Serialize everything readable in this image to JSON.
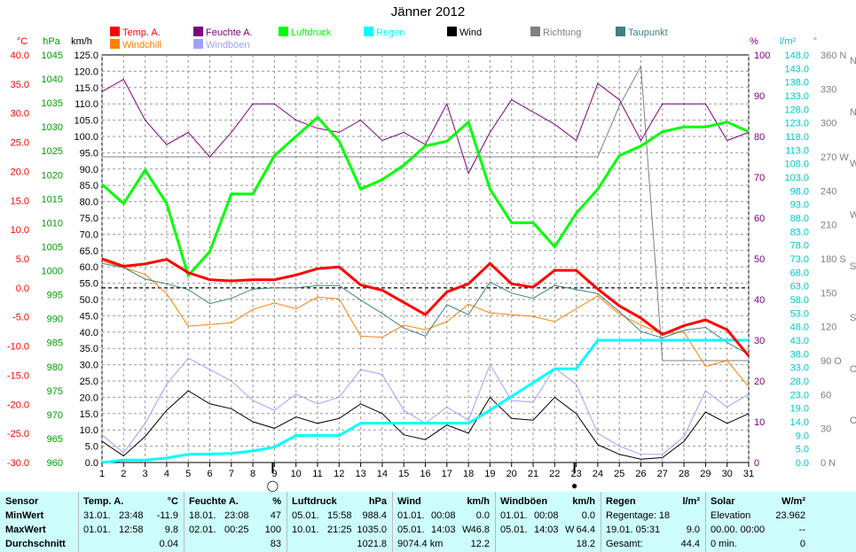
{
  "title": "Jänner 2012",
  "axes": {
    "temp_unit": "°C",
    "pressure_unit": "hPa",
    "speed_unit": "km/h",
    "humidity_unit": "%",
    "rain_unit": "l/m²",
    "direction_unit": "°",
    "temp_ticks": [
      "40.0",
      "35.0",
      "30.0",
      "25.0",
      "20.0",
      "15.0",
      "10.0",
      "5.0",
      "0.0",
      "-5.0",
      "-10.0",
      "-15.0",
      "-20.0",
      "-25.0",
      "-30.0"
    ],
    "pressure_ticks": [
      "1045",
      "1040",
      "1035",
      "1030",
      "1025",
      "1020",
      "1015",
      "1010",
      "1005",
      "1000",
      "995",
      "990",
      "985",
      "980",
      "975",
      "970",
      "965",
      "960"
    ],
    "speed_ticks": [
      "125.0",
      "120.0",
      "115.0",
      "110.0",
      "105.0",
      "100.0",
      "95.0",
      "90.0",
      "85.0",
      "80.0",
      "75.0",
      "70.0",
      "65.0",
      "60.0",
      "55.0",
      "50.0",
      "45.0",
      "40.0",
      "35.0",
      "30.0",
      "25.0",
      "20.0",
      "15.0",
      "10.0",
      "5.0",
      "0.0"
    ],
    "humidity_ticks": [
      "100",
      "90",
      "80",
      "70",
      "60",
      "50",
      "40",
      "30",
      "20",
      "10",
      "0"
    ],
    "rain_ticks": [
      "148.0",
      "143.0",
      "138.0",
      "133.0",
      "128.0",
      "123.0",
      "118.0",
      "113.0",
      "108.0",
      "103.0",
      "98.0",
      "93.0",
      "88.0",
      "83.0",
      "78.0",
      "73.0",
      "68.0",
      "63.0",
      "58.0",
      "53.0",
      "48.0",
      "43.0",
      "38.0",
      "33.0",
      "28.0",
      "23.0",
      "19.0",
      "14.0",
      "9.0",
      "5.0",
      "0.0"
    ],
    "direction_ticks": [
      "360 N",
      "330",
      "300",
      "270 W",
      "240",
      "210",
      "180 S",
      "150",
      "120",
      "90 O",
      "60",
      "30",
      "0 N"
    ],
    "direction_right": [
      "N",
      "N",
      "W",
      "W",
      "S",
      "S",
      "O",
      "O"
    ]
  },
  "legend": [
    {
      "label": "Temp. A.",
      "color": "#ff0000"
    },
    {
      "label": "Feuchte A.",
      "color": "#800080"
    },
    {
      "label": "Luftdruck",
      "color": "#00ff00"
    },
    {
      "label": "Regen",
      "color": "#00ffff"
    },
    {
      "label": "Wind",
      "color": "#000000"
    },
    {
      "label": "Richtung",
      "color": "#808080"
    },
    {
      "label": "Taupunkt",
      "color": "#408080"
    },
    {
      "label": "Windchill",
      "color": "#ff8000"
    },
    {
      "label": "Windböen",
      "color": "#a0a0ff"
    }
  ],
  "chart_data": {
    "type": "line",
    "title": "Jänner 2012",
    "x": [
      1,
      2,
      3,
      4,
      5,
      6,
      7,
      8,
      9,
      10,
      11,
      12,
      13,
      14,
      15,
      16,
      17,
      18,
      19,
      20,
      21,
      22,
      23,
      24,
      25,
      26,
      27,
      28,
      29,
      30,
      31
    ],
    "series": [
      {
        "name": "Temp. A.",
        "unit": "°C",
        "axis": "temp",
        "color": "#ff0000",
        "values": [
          5.0,
          3.7,
          4.1,
          4.9,
          2.6,
          1.4,
          1.2,
          1.4,
          1.4,
          2.2,
          3.3,
          3.6,
          0.5,
          -0.4,
          -2.5,
          -4.6,
          -0.7,
          0.7,
          4.2,
          0.7,
          0.1,
          3.0,
          3.0,
          -0.2,
          -3.1,
          -5.2,
          -8.0,
          -6.5,
          -5.5,
          -7.2,
          -11.7
        ]
      },
      {
        "name": "Feuchte A.",
        "unit": "%",
        "axis": "humidity",
        "color": "#800080",
        "values": [
          91,
          94,
          84,
          78,
          81,
          75,
          81,
          88,
          88,
          84,
          82,
          81,
          84,
          79,
          81,
          78,
          88,
          71,
          81,
          89,
          86,
          83,
          79,
          93,
          89,
          79,
          88,
          88,
          88,
          79,
          81
        ]
      },
      {
        "name": "Luftdruck",
        "unit": "hPa",
        "axis": "pressure",
        "color": "#00ff00",
        "values": [
          1018,
          1014,
          1021,
          1014,
          999,
          1004,
          1016,
          1016,
          1024,
          1028,
          1032,
          1027,
          1017,
          1019,
          1022,
          1026,
          1027,
          1031,
          1017,
          1010,
          1010,
          1005,
          1012,
          1017,
          1024,
          1026,
          1029,
          1030,
          1030,
          1031,
          1029
        ]
      },
      {
        "name": "Regen",
        "unit": "l/m²",
        "axis": "rain",
        "color": "#00ffff",
        "values": [
          0.0,
          0.9,
          0.9,
          1.6,
          3.0,
          3.1,
          3.3,
          4.2,
          5.6,
          9.8,
          9.8,
          9.8,
          14.3,
          14.3,
          14.3,
          14.3,
          14.3,
          14.3,
          19.0,
          24.0,
          29.0,
          34.0,
          34.0,
          44.4,
          44.4,
          44.4,
          44.4,
          44.4,
          44.4,
          44.4,
          44.4
        ]
      },
      {
        "name": "Wind",
        "unit": "km/h",
        "axis": "speed",
        "color": "#000000",
        "values": [
          6.5,
          2.0,
          8.0,
          16.0,
          22.0,
          18.0,
          16.5,
          12.5,
          10.5,
          14.0,
          12.0,
          13.5,
          18.0,
          15.0,
          8.5,
          7.0,
          11.5,
          9.0,
          20.0,
          13.5,
          13.0,
          20.0,
          15.0,
          5.5,
          2.5,
          1.0,
          1.5,
          6.5,
          15.5,
          12.0,
          15.0
        ]
      },
      {
        "name": "Richtung",
        "unit": "°",
        "axis": "direction",
        "color": "#808080",
        "values": [
          270,
          270,
          270,
          270,
          270,
          270,
          270,
          270,
          270,
          270,
          270,
          270,
          270,
          270,
          270,
          270,
          270,
          270,
          270,
          270,
          270,
          270,
          270,
          270,
          315,
          350,
          90,
          90,
          90,
          90,
          90
        ]
      },
      {
        "name": "Taupunkt",
        "unit": "°C",
        "axis": "temp",
        "color": "#408080",
        "values": [
          4.2,
          3.5,
          1.5,
          0.7,
          -0.3,
          -2.7,
          -1.8,
          -0.2,
          0.0,
          0.0,
          0.4,
          0.4,
          -2.1,
          -4.4,
          -6.9,
          -8.3,
          -2.9,
          -4.6,
          1.0,
          -0.9,
          -1.8,
          0.4,
          -0.3,
          -1.0,
          -4.1,
          -7.5,
          -8.6,
          -7.3,
          -6.8,
          -9.4,
          -11.4
        ]
      },
      {
        "name": "Windchill",
        "unit": "°C",
        "axis": "temp",
        "color": "#ff8000",
        "values": [
          4.6,
          3.5,
          2.3,
          -1.0,
          -6.6,
          -6.3,
          -6.0,
          -3.7,
          -2.6,
          -3.6,
          -1.6,
          -1.9,
          -8.3,
          -8.5,
          -6.4,
          -7.2,
          -5.8,
          -2.8,
          -4.3,
          -4.6,
          -4.9,
          -5.8,
          -3.6,
          -1.4,
          -4.5,
          -6.4,
          -7.9,
          -7.6,
          -13.5,
          -12.5,
          -17.0
        ]
      },
      {
        "name": "Windböen",
        "unit": "km/h",
        "axis": "speed",
        "color": "#a0a0ff",
        "values": [
          8.5,
          3.0,
          12.0,
          24.0,
          32.0,
          28.5,
          25.0,
          19.0,
          16.0,
          21.0,
          18.0,
          20.0,
          28.5,
          27.0,
          16.0,
          12.0,
          17.0,
          13.0,
          30.0,
          19.0,
          18.5,
          29.0,
          24.0,
          9.0,
          5.0,
          2.5,
          2.5,
          8.0,
          22.0,
          17.0,
          21.0
        ]
      }
    ],
    "moon_marks": [
      {
        "day": 9,
        "symbol": "◯"
      },
      {
        "day": 23,
        "symbol": "●"
      }
    ],
    "reference_lines": [
      {
        "axis": "temp",
        "value": 0.0,
        "style": "dashed"
      }
    ]
  },
  "stats": {
    "sensor": {
      "header": "Sensor",
      "min": "MinWert",
      "max": "MaxWert",
      "avg": "Durchschnitt"
    },
    "temp": {
      "header": "Temp. A.",
      "unit": "°C",
      "min_date": "31.01.",
      "min_time": "23:48",
      "min_val": "-11.9",
      "max_date": "01.01.",
      "max_time": "12:58",
      "max_val": "9.8",
      "avg_val": "0.04"
    },
    "hum": {
      "header": "Feuchte A.",
      "unit": "%",
      "min_date": "18.01.",
      "min_time": "23:08",
      "min_val": "47",
      "max_date": "02.01.",
      "max_time": "00:25",
      "max_val": "100",
      "avg_val": "83"
    },
    "press": {
      "header": "Luftdruck",
      "unit": "hPa",
      "min_date": "05.01.",
      "min_time": "15:58",
      "min_val": "988.4",
      "max_date": "10.01.",
      "max_time": "21:25",
      "max_val": "1035.0",
      "avg_val": "1021.8"
    },
    "wind": {
      "header": "Wind",
      "unit": "km/h",
      "min_date": "01.01.",
      "min_time": "00:08",
      "min_val": "0.0",
      "max_date": "05.01.",
      "max_time": "14:03",
      "max_dir": "W",
      "max_val": "46.8",
      "avg_extra": "9074.4 km",
      "avg_val": "12.2"
    },
    "gust": {
      "header": "Windböen",
      "unit": "km/h",
      "min_date": "01.01.",
      "min_time": "00:08",
      "min_val": "0.0",
      "max_date": "05.01.",
      "max_time": "14:03",
      "max_dir": "W",
      "max_val": "64.4",
      "avg_val": "18.2"
    },
    "rain": {
      "header": "Regen",
      "unit": "l/m²",
      "row1_label": "Regentage: 18",
      "row2_text": "19.01.  05:31",
      "row2_val": "9.0",
      "row3_label": "Gesamt:",
      "row3_val": "44.4"
    },
    "solar": {
      "header": "Solar",
      "unit": "W/m²",
      "row1_label": "Elevation",
      "row1_val": "23.962",
      "row2_text": "00.00.  00:00",
      "row2_val": "--",
      "row3_label": "0 min.",
      "row3_val": "0"
    }
  }
}
